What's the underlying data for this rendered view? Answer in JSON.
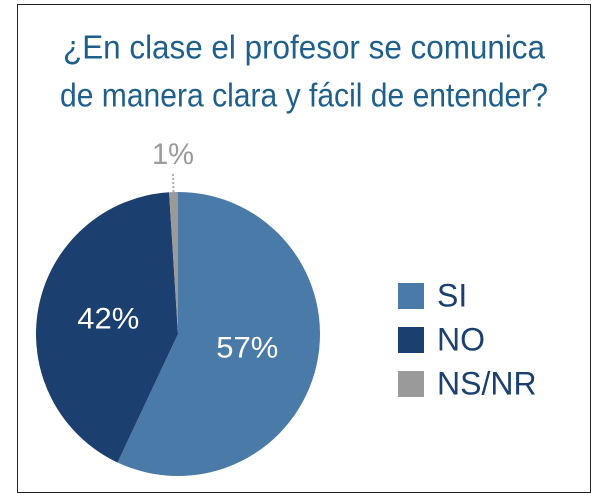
{
  "chart_data": {
    "type": "pie",
    "title": [
      "¿En clase el profesor se comunica",
      "de manera clara y fácil de entender?"
    ],
    "categories": [
      "SI",
      "NO",
      "NS/NR"
    ],
    "values": [
      57,
      42,
      1
    ],
    "value_labels": [
      "57%",
      "42%",
      "1%"
    ],
    "colors": [
      "#4a7aa8",
      "#1b3f6e",
      "#9a9a9a"
    ],
    "legend": "right"
  }
}
